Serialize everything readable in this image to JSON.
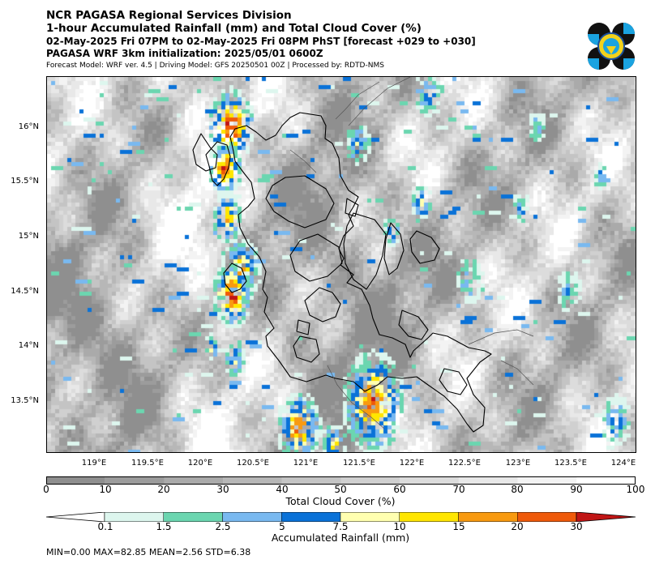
{
  "header": {
    "line1": "NCR PAGASA Regional Services Division",
    "line2": "1-hour Accumulated Rainfall (mm) and Total Cloud Cover (%)",
    "line3": "02-May-2025 Fri 07PM to 02-May-2025 Fri 08PM PhST [forecast +029 to +030]",
    "line4": "PAGASA WRF 3km initialization: 2025/05/01 0600Z",
    "line5": "Forecast Model: WRF ver. 4.5 | Driving Model: GFS 20250501 00Z | Processed by: RDTD-NMS"
  },
  "map": {
    "lat_labels": [
      "16°N",
      "15.5°N",
      "15°N",
      "14.5°N",
      "14°N",
      "13.5°N"
    ],
    "lon_labels": [
      "119°E",
      "119.5°E",
      "120°E",
      "120.5°E",
      "121°E",
      "121.5°E",
      "122°E",
      "122.5°E",
      "123°E",
      "123.5°E",
      "124°E"
    ]
  },
  "cloud_colorbar": {
    "label": "Total Cloud Cover (%)",
    "ticks": [
      "0",
      "10",
      "20",
      "30",
      "40",
      "50",
      "60",
      "70",
      "80",
      "90",
      "100"
    ],
    "colors": [
      "#8f8f8f",
      "#9c9c9c",
      "#aaaaaa",
      "#b7b7b7",
      "#c4c4c4",
      "#d0d0d0",
      "#dcdcdc",
      "#e8e8e8",
      "#f3f3f3",
      "#ffffff"
    ]
  },
  "rain_colorbar": {
    "label": "Accumulated Rainfall (mm)",
    "ticks": [
      "0.1",
      "1.5",
      "2.5",
      "5",
      "7.5",
      "10",
      "15",
      "20",
      "30"
    ],
    "colors": [
      "#ddf6ee",
      "#6bd6b0",
      "#79b9f0",
      "#0a72d8",
      "#ffffb0",
      "#ffe600",
      "#f89a10",
      "#ef5a0a",
      "#c01515"
    ]
  },
  "stats": {
    "text": "MIN=0.00   MAX=82.85   MEAN=2.56   STD=6.38"
  }
}
